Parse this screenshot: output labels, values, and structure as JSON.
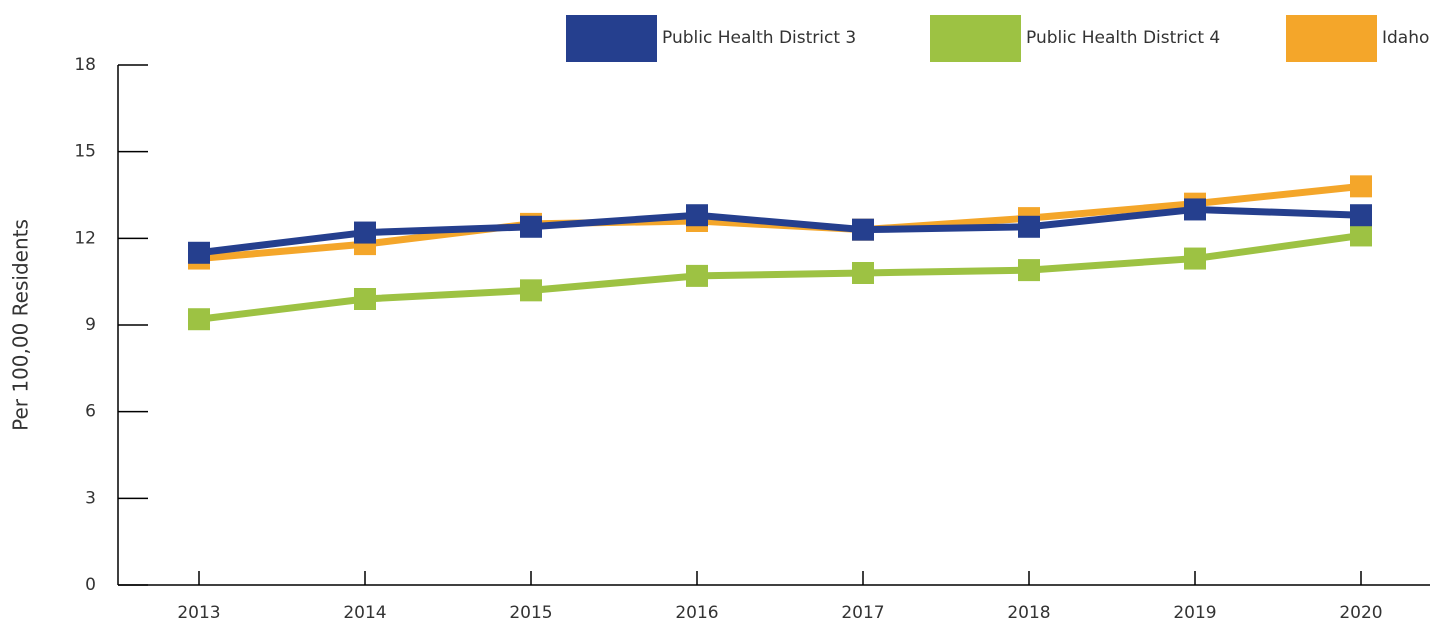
{
  "chart_data": {
    "type": "line",
    "y_label": "Per 100,00 Residents",
    "categories": [
      "2013",
      "2014",
      "2015",
      "2016",
      "2017",
      "2018",
      "2019",
      "2020"
    ],
    "series": [
      {
        "name": "Public Health District 3",
        "color": "#253f8e",
        "values": [
          11.5,
          12.2,
          12.4,
          12.8,
          12.3,
          12.4,
          13.0,
          12.8
        ]
      },
      {
        "name": "Public Health District 4",
        "color": "#9dc243",
        "values": [
          9.2,
          9.9,
          10.2,
          10.7,
          10.8,
          10.9,
          11.3,
          12.1
        ]
      },
      {
        "name": "Idaho",
        "color": "#f4a62a",
        "values": [
          11.3,
          11.8,
          12.5,
          12.6,
          12.3,
          12.7,
          13.2,
          13.8
        ]
      }
    ],
    "ylim": [
      0,
      18
    ],
    "yticks": [
      0,
      3,
      6,
      9,
      12,
      15,
      18
    ],
    "grid": false,
    "legend": "top-right"
  }
}
